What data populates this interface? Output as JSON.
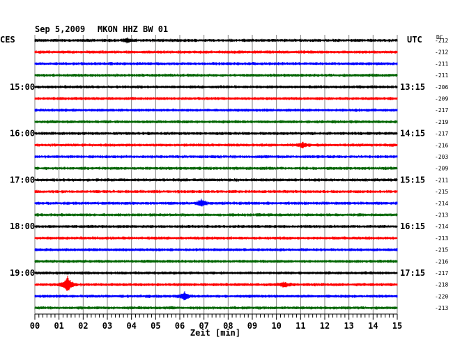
{
  "header": {
    "date": "Sep 5,2009",
    "station": "MKON HHZ BW 01",
    "left_zone": "CES",
    "right_zone": "UTC",
    "dc_label": "DC"
  },
  "chart_data": {
    "type": "line",
    "title": "Sep 5,2009   MKON HHZ BW 01",
    "xlabel": "Zeit [min]",
    "ylabel": "",
    "xlim": [
      0,
      15
    ],
    "x_ticks": [
      "00",
      "01",
      "02",
      "03",
      "04",
      "05",
      "06",
      "07",
      "08",
      "09",
      "10",
      "11",
      "12",
      "13",
      "14",
      "15"
    ],
    "grid": true,
    "trace_colors": [
      "#000000",
      "#ff0000",
      "#0000ff",
      "#006400"
    ],
    "left_hour_labels": [
      {
        "row": 4,
        "label": "15:00"
      },
      {
        "row": 8,
        "label": "16:00"
      },
      {
        "row": 12,
        "label": "17:00"
      },
      {
        "row": 16,
        "label": "18:00"
      },
      {
        "row": 20,
        "label": "19:00"
      }
    ],
    "right_hour_labels": [
      {
        "row": 4,
        "label": "13:15"
      },
      {
        "row": 8,
        "label": "14:15"
      },
      {
        "row": 12,
        "label": "15:15"
      },
      {
        "row": 16,
        "label": "16:15"
      },
      {
        "row": 20,
        "label": "17:15"
      }
    ],
    "dc_offsets": [
      "-212",
      "-212",
      "-211",
      "-211",
      "-206",
      "-209",
      "-217",
      "-219",
      "-217",
      "-216",
      "-203",
      "-209",
      "-211",
      "-215",
      "-214",
      "-213",
      "-214",
      "-213",
      "-215",
      "-216",
      "-217",
      "-218",
      "-220",
      "-213"
    ],
    "events": [
      {
        "row": 21,
        "minute": 1.35,
        "amplitude": 1.0
      },
      {
        "row": 22,
        "minute": 6.2,
        "amplitude": 0.5
      },
      {
        "row": 14,
        "minute": 6.9,
        "amplitude": 0.45
      },
      {
        "row": 21,
        "minute": 10.3,
        "amplitude": 0.3
      },
      {
        "row": 9,
        "minute": 11.1,
        "amplitude": 0.3
      },
      {
        "row": 0,
        "minute": 3.8,
        "amplitude": 0.25
      }
    ]
  }
}
